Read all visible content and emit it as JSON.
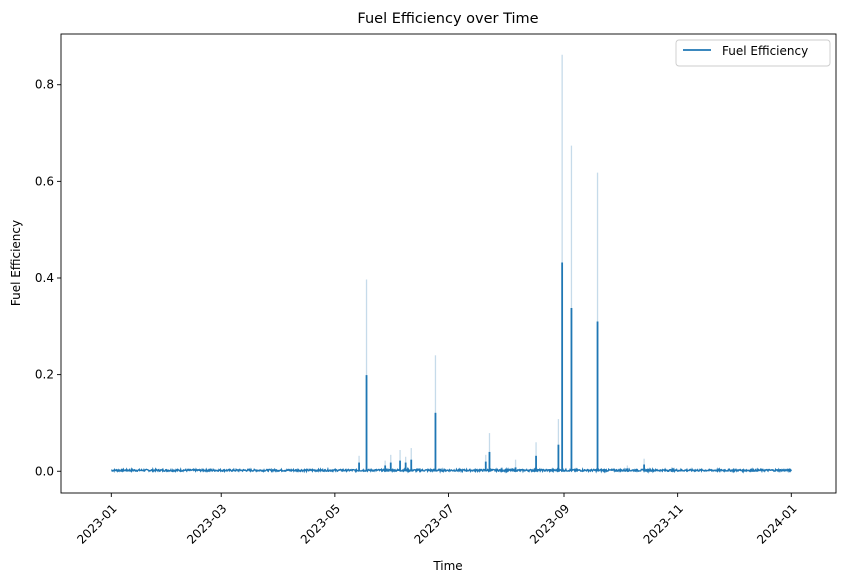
{
  "chart_data": {
    "type": "line",
    "title": "Fuel Efficiency over Time",
    "xlabel": "Time",
    "ylabel": "Fuel Efficiency",
    "x_ticks": [
      "2023-01",
      "2023-03",
      "2023-05",
      "2023-07",
      "2023-09",
      "2023-11",
      "2024-01"
    ],
    "y_ticks": [
      "0.0",
      "0.2",
      "0.4",
      "0.6",
      "0.8"
    ],
    "xlim": [
      "2022-12-05",
      "2024-01-25"
    ],
    "ylim": [
      -0.045,
      0.905
    ],
    "grid": false,
    "legend_position": "top-right",
    "colors": {
      "series": "#1f77b4",
      "band": "#c6dbea",
      "axis": "#000000"
    },
    "series": [
      {
        "name": "Fuel Efficiency",
        "baseline_range": [
          "2023-01-01",
          "2024-01-01"
        ],
        "baseline_value": 0.002,
        "spikes": [
          {
            "date": "2023-05-14",
            "value": 0.018,
            "band_high": 0.032
          },
          {
            "date": "2023-05-18",
            "value": 0.199,
            "band_high": 0.397
          },
          {
            "date": "2023-05-28",
            "value": 0.012,
            "band_high": 0.022
          },
          {
            "date": "2023-05-31",
            "value": 0.018,
            "band_high": 0.034
          },
          {
            "date": "2023-06-05",
            "value": 0.022,
            "band_high": 0.044
          },
          {
            "date": "2023-06-08",
            "value": 0.018,
            "band_high": 0.03
          },
          {
            "date": "2023-06-11",
            "value": 0.024,
            "band_high": 0.048
          },
          {
            "date": "2023-06-24",
            "value": 0.121,
            "band_high": 0.24
          },
          {
            "date": "2023-07-21",
            "value": 0.02,
            "band_high": 0.034
          },
          {
            "date": "2023-07-23",
            "value": 0.04,
            "band_high": 0.079
          },
          {
            "date": "2023-08-06",
            "value": 0.008,
            "band_high": 0.024
          },
          {
            "date": "2023-08-17",
            "value": 0.032,
            "band_high": 0.06
          },
          {
            "date": "2023-08-29",
            "value": 0.055,
            "band_high": 0.108
          },
          {
            "date": "2023-08-31",
            "value": 0.432,
            "band_high": 0.862
          },
          {
            "date": "2023-09-05",
            "value": 0.338,
            "band_high": 0.674
          },
          {
            "date": "2023-09-19",
            "value": 0.31,
            "band_high": 0.618
          },
          {
            "date": "2023-10-05",
            "value": 0.006,
            "band_high": 0.012
          },
          {
            "date": "2023-10-14",
            "value": 0.014,
            "band_high": 0.026
          }
        ]
      }
    ]
  }
}
